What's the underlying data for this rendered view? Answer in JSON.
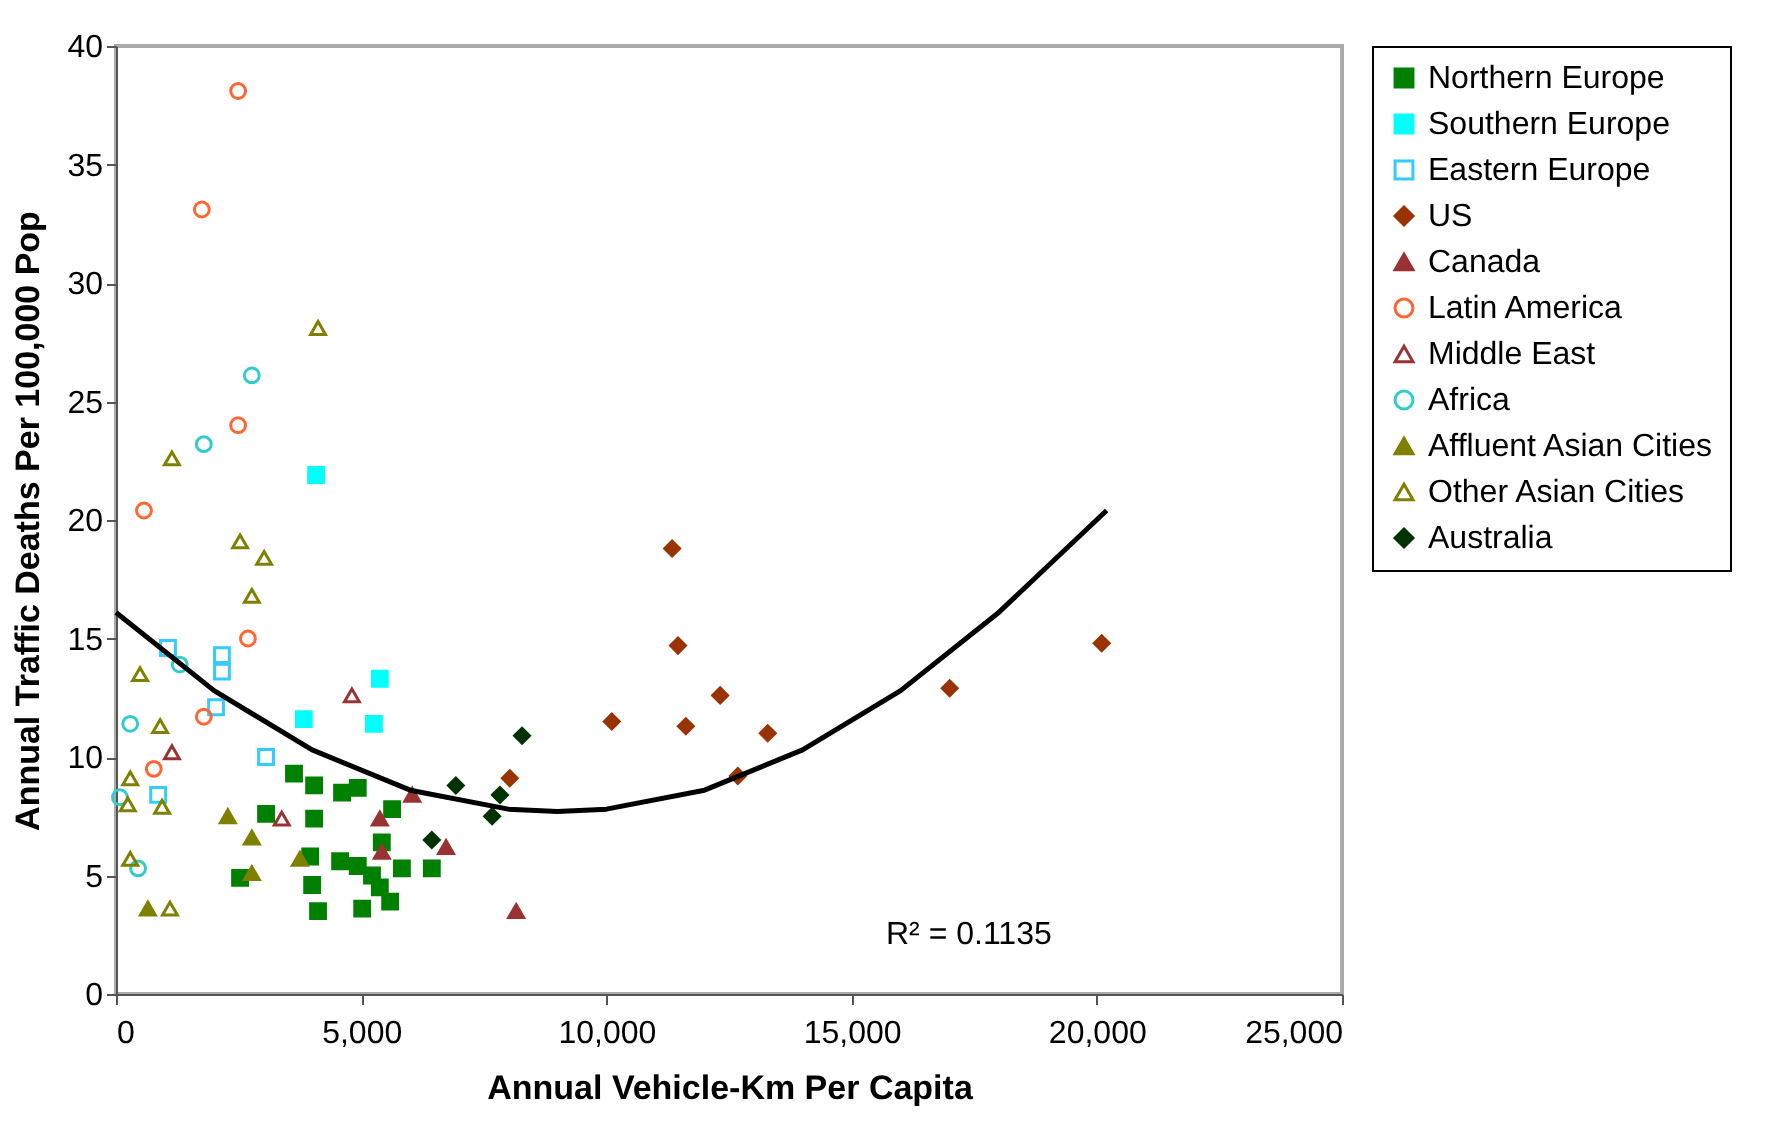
{
  "chart_data": {
    "type": "scatter",
    "xlabel": "Annual Vehicle-Km Per Capita",
    "ylabel": "Annual Traffic Deaths Per 100,000 Pop",
    "xlim": [
      0,
      25000
    ],
    "ylim": [
      0,
      40
    ],
    "xticks": [
      0,
      {
        "value": 5000,
        "label": "5,000"
      },
      {
        "value": 10000,
        "label": "10,000"
      },
      {
        "value": 15000,
        "label": "15,000"
      },
      {
        "value": 20000,
        "label": "20,000"
      },
      {
        "value": 25000,
        "label": "25,000"
      }
    ],
    "yticks": [
      0,
      5,
      10,
      15,
      20,
      25,
      30,
      35,
      40
    ],
    "grid": false,
    "legend": "right",
    "annotations": [
      "R² = 0.1135"
    ],
    "series": [
      {
        "name": "Northern Europe",
        "color": "#008000",
        "marker": "square",
        "x": [
          3630,
          4040,
          4610,
          4930,
          3060,
          4040,
          5630,
          5420,
          3960,
          4570,
          4930,
          5220,
          5830,
          6440,
          4000,
          5380,
          5590,
          5020,
          4120,
          2530
        ],
        "values": [
          9.3,
          8.8,
          8.5,
          8.7,
          7.6,
          7.4,
          7.8,
          6.4,
          5.8,
          5.6,
          5.4,
          5.0,
          5.3,
          5.3,
          4.6,
          4.5,
          3.9,
          3.6,
          3.5,
          4.9
        ]
      },
      {
        "name": "Southern Europe",
        "color": "#00ffff",
        "marker": "square",
        "x": [
          4080,
          5380,
          3830,
          5260
        ],
        "values": [
          21.9,
          13.3,
          11.6,
          11.4
        ]
      },
      {
        "name": "Eastern Europe",
        "color": "#33ccff",
        "marker": "square-open",
        "x": [
          1060,
          2160,
          2160,
          2040,
          3060,
          860
        ],
        "values": [
          14.6,
          14.3,
          13.6,
          12.1,
          10.0,
          8.4
        ]
      },
      {
        "name": "US",
        "color": "#993300",
        "marker": "diamond",
        "x": [
          11340,
          11460,
          10110,
          11620,
          12320,
          13290,
          12680,
          20100,
          17000,
          8030
        ],
        "values": [
          18.8,
          14.7,
          11.5,
          11.3,
          12.6,
          11.0,
          9.2,
          14.8,
          12.9,
          9.1
        ]
      },
      {
        "name": "Canada",
        "color": "#993333",
        "marker": "triangle",
        "x": [
          6040,
          5380,
          5420,
          6730,
          8160
        ],
        "values": [
          8.4,
          7.4,
          6.0,
          6.2,
          3.5
        ]
      },
      {
        "name": "Latin America",
        "color": "#ff6633",
        "marker": "circle-open",
        "x": [
          2490,
          1750,
          2490,
          570,
          2690,
          1790,
          770
        ],
        "values": [
          38.1,
          33.1,
          24.0,
          20.4,
          15.0,
          11.7,
          9.5
        ]
      },
      {
        "name": "Middle East",
        "color": "#993333",
        "marker": "triangle-open",
        "x": [
          4810,
          1140,
          3380
        ],
        "values": [
          12.6,
          10.2,
          7.4
        ]
      },
      {
        "name": "Africa",
        "color": "#33cccc",
        "marker": "circle-open",
        "x": [
          2770,
          1790,
          1300,
          290,
          80,
          450
        ],
        "values": [
          26.1,
          23.2,
          13.9,
          11.4,
          8.3,
          5.3
        ]
      },
      {
        "name": "Affluent Asian Cities",
        "color": "#808000",
        "marker": "triangle",
        "x": [
          2280,
          2770,
          2770,
          3750,
          650
        ],
        "values": [
          7.5,
          6.6,
          5.1,
          5.7,
          3.6
        ]
      },
      {
        "name": "Other Asian Cities",
        "color": "#808000",
        "marker": "triangle-open",
        "x": [
          4120,
          1140,
          2530,
          3020,
          2770,
          490,
          900,
          290,
          240,
          940,
          290,
          1100
        ],
        "values": [
          28.1,
          22.6,
          19.1,
          18.4,
          16.8,
          13.5,
          11.3,
          9.1,
          8.0,
          7.9,
          5.7,
          3.6
        ]
      },
      {
        "name": "Australia",
        "color": "#003300",
        "marker": "diamond",
        "x": [
          8280,
          6930,
          7830,
          7670,
          6440
        ],
        "values": [
          10.9,
          8.8,
          8.4,
          7.5,
          6.5
        ]
      },
      {
        "type": "line",
        "color": "#000000",
        "marker": "none",
        "x": [
          0,
          2000,
          4000,
          6000,
          8000,
          9000,
          10000,
          12000,
          14000,
          16000,
          18000,
          20200
        ],
        "values": [
          16.1,
          12.8,
          10.3,
          8.6,
          7.8,
          7.7,
          7.8,
          8.6,
          10.3,
          12.8,
          16.1,
          20.4
        ]
      }
    ]
  }
}
